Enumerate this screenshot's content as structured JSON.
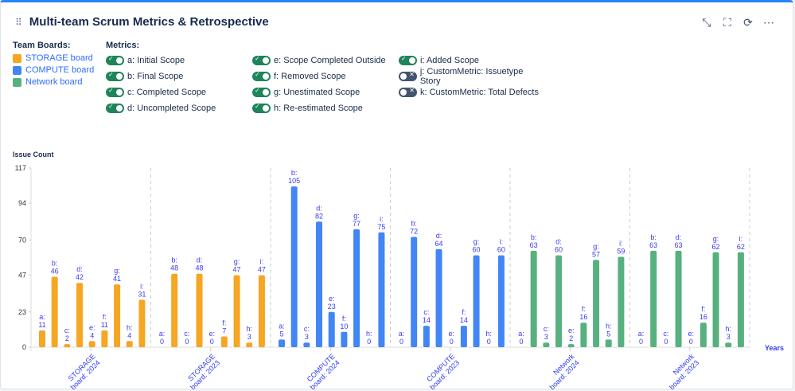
{
  "header": {
    "title": "Multi-team Scrum Metrics & Retrospective",
    "icons": [
      "collapse-icon",
      "fullscreen-icon",
      "refresh-icon",
      "more-icon"
    ]
  },
  "legend": {
    "boards_title": "Team Boards:",
    "boards": [
      {
        "label": "STORAGE board",
        "color": "#f5a623"
      },
      {
        "label": "COMPUTE board",
        "color": "#4285f4"
      },
      {
        "label": "Network board",
        "color": "#57b17f"
      }
    ],
    "metrics_title": "Metrics:",
    "metrics": [
      {
        "label": "a: Initial Scope",
        "on": true
      },
      {
        "label": "b: Final Scope",
        "on": true
      },
      {
        "label": "c: Completed Scope",
        "on": true
      },
      {
        "label": "d: Uncompleted Scope",
        "on": true
      },
      {
        "label": "e: Scope Completed Outside",
        "on": true
      },
      {
        "label": "f: Removed Scope",
        "on": true
      },
      {
        "label": "g: Unestimated Scope",
        "on": true
      },
      {
        "label": "h: Re-estimated Scope",
        "on": true
      },
      {
        "label": "i: Added Scope",
        "on": true
      },
      {
        "label": "j: CustomMetric: Issuetype Story",
        "on": false
      },
      {
        "label": "k: CustomMetric: Total Defects",
        "on": false
      }
    ]
  },
  "chart_data": {
    "type": "bar",
    "ylabel": "Issue Count",
    "xlabel": "Years",
    "ylim": [
      0,
      117
    ],
    "yticks": [
      0,
      23,
      47,
      70,
      94,
      117
    ],
    "grid": "vertical dashed group separators",
    "bar_keys": [
      "a",
      "b",
      "c",
      "d",
      "e",
      "f",
      "g",
      "h",
      "i"
    ],
    "groups": [
      {
        "label": [
          "STORAGE",
          "board: 2024"
        ],
        "color": "#f5a623",
        "values": [
          11,
          46,
          2,
          42,
          4,
          11,
          41,
          4,
          31
        ]
      },
      {
        "label": [
          "STORAGE",
          "board: 2023"
        ],
        "color": "#f5a623",
        "values": [
          0,
          48,
          0,
          48,
          0,
          7,
          47,
          3,
          47
        ]
      },
      {
        "label": [
          "COMPUTE",
          "board: 2024"
        ],
        "color": "#4285f4",
        "values": [
          5,
          105,
          3,
          82,
          23,
          10,
          77,
          0,
          75
        ]
      },
      {
        "label": [
          "COMPUTE",
          "board: 2023"
        ],
        "color": "#4285f4",
        "values": [
          0,
          72,
          14,
          64,
          0,
          14,
          60,
          0,
          60
        ]
      },
      {
        "label": [
          "Network",
          "board: 2024"
        ],
        "color": "#57b17f",
        "values": [
          0,
          63,
          3,
          60,
          2,
          16,
          57,
          5,
          59
        ]
      },
      {
        "label": [
          "Network",
          "board: 2023"
        ],
        "color": "#57b17f",
        "values": [
          0,
          63,
          0,
          63,
          0,
          16,
          62,
          3,
          62
        ]
      }
    ]
  }
}
